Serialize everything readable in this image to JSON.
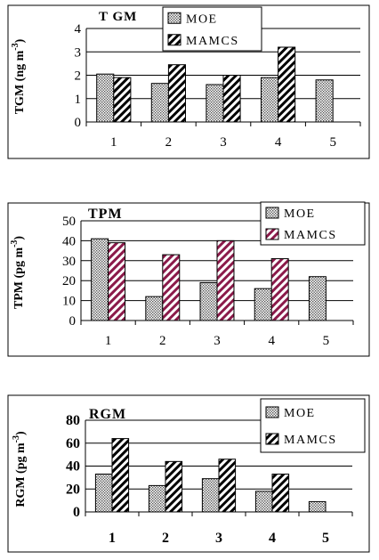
{
  "colors": {
    "moe_fill": "#cccccc",
    "mamcs_stripe_1": "#000000",
    "mamcs_stripe_2": "#8b1a4a",
    "mamcs_stripe_3": "#000000",
    "frame": "#000000",
    "background": "#ffffff"
  },
  "chart_data": [
    {
      "type": "bar",
      "title": "T GM",
      "ylabel": "TGM  (ng m",
      "ylabel_sup": "-3",
      "ylabel_close": ")",
      "ylim": [
        0,
        4
      ],
      "yticks": [
        "0",
        "1",
        "2",
        "3",
        "4"
      ],
      "categories": [
        "1",
        "2",
        "3",
        "4",
        "5"
      ],
      "legend_position": "top-right",
      "tick_bold": false,
      "series": [
        {
          "name": "MOE",
          "values": [
            2.05,
            1.65,
            1.6,
            1.9,
            1.8
          ],
          "pattern": "dots"
        },
        {
          "name": "MAMCS",
          "values": [
            1.9,
            2.45,
            2.0,
            3.2,
            null
          ],
          "pattern": "stripes"
        }
      ]
    },
    {
      "type": "bar",
      "title": "TPM",
      "ylabel": "TPM  (pg m",
      "ylabel_sup": "-3",
      "ylabel_close": ")",
      "ylim": [
        0,
        50
      ],
      "yticks": [
        "0",
        "10",
        "20",
        "30",
        "40",
        "50"
      ],
      "categories": [
        "1",
        "2",
        "3",
        "4",
        "5"
      ],
      "legend_position": "top-right",
      "tick_bold": false,
      "series": [
        {
          "name": "MOE",
          "values": [
            41,
            12,
            19,
            16,
            22
          ],
          "pattern": "dots"
        },
        {
          "name": "MAMCS",
          "values": [
            39,
            33,
            40,
            31,
            null
          ],
          "pattern": "stripes"
        }
      ]
    },
    {
      "type": "bar",
      "title": "RGM",
      "ylabel": "RGM  (pg m",
      "ylabel_sup": "-3",
      "ylabel_close": ")",
      "ylim": [
        0,
        80
      ],
      "yticks": [
        "0",
        "20",
        "40",
        "60",
        "80"
      ],
      "categories": [
        "1",
        "2",
        "3",
        "4",
        "5"
      ],
      "legend_position": "top-right",
      "tick_bold": true,
      "series": [
        {
          "name": "MOE",
          "values": [
            33,
            23,
            29,
            18,
            9
          ],
          "pattern": "dots"
        },
        {
          "name": "MAMCS",
          "values": [
            64,
            44,
            46,
            33,
            null
          ],
          "pattern": "stripes"
        }
      ]
    }
  ]
}
